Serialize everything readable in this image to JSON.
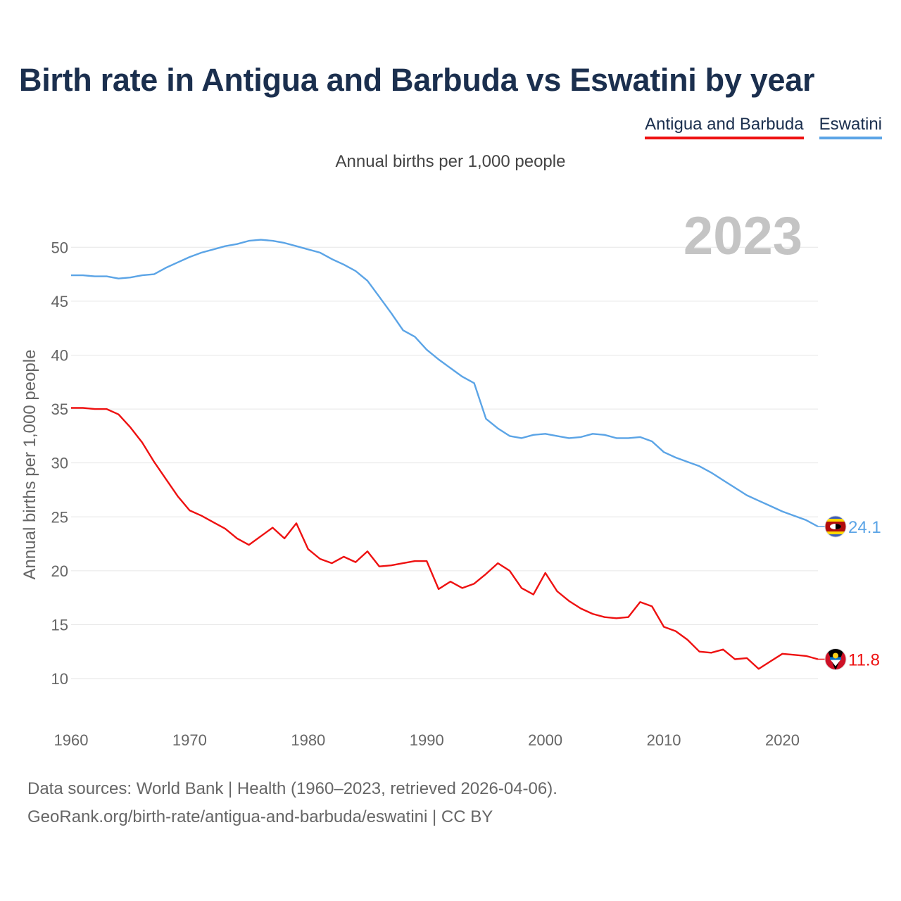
{
  "title": "Birth rate in Antigua and Barbuda vs Eswatini by year",
  "legend": {
    "items": [
      "Antigua and Barbuda",
      "Eswatini"
    ]
  },
  "colors": {
    "antigua": "#ee1111",
    "eswatini": "#5ba4e6",
    "title": "#1b2f4e",
    "grid": "#e6e6e6",
    "year_watermark": "#c4c4c4"
  },
  "source": {
    "line1": "Data sources: World Bank | Health (1960–2023, retrieved 2026-04-06).",
    "line2": "GeoRank.org/birth-rate/antigua-and-barbuda/eswatini | CC BY"
  },
  "chart_data": {
    "type": "line",
    "title": "Birth rate in Antigua and Barbuda vs Eswatini by year",
    "subtitle": "Annual births per 1,000 people",
    "xlabel": "",
    "ylabel": "Annual births per 1,000 people",
    "xlim": [
      1960,
      2023
    ],
    "ylim": [
      7,
      54
    ],
    "y_ticks": [
      10,
      15,
      20,
      25,
      30,
      35,
      40,
      45,
      50
    ],
    "x_ticks": [
      1960,
      1970,
      1980,
      1990,
      2000,
      2010,
      2020
    ],
    "grid": true,
    "year_label": "2023",
    "x": [
      1960,
      1961,
      1962,
      1963,
      1964,
      1965,
      1966,
      1967,
      1968,
      1969,
      1970,
      1971,
      1972,
      1973,
      1974,
      1975,
      1976,
      1977,
      1978,
      1979,
      1980,
      1981,
      1982,
      1983,
      1984,
      1985,
      1986,
      1987,
      1988,
      1989,
      1990,
      1991,
      1992,
      1993,
      1994,
      1995,
      1996,
      1997,
      1998,
      1999,
      2000,
      2001,
      2002,
      2003,
      2004,
      2005,
      2006,
      2007,
      2008,
      2009,
      2010,
      2011,
      2012,
      2013,
      2014,
      2015,
      2016,
      2017,
      2018,
      2019,
      2020,
      2021,
      2022,
      2023
    ],
    "series": [
      {
        "name": "Antigua and Barbuda",
        "color": "#ee1111",
        "end_label": "11.8",
        "values": [
          35.1,
          35.1,
          35.0,
          35.0,
          34.5,
          33.3,
          31.9,
          30.1,
          28.5,
          26.9,
          25.6,
          25.1,
          24.5,
          23.9,
          23.0,
          22.4,
          23.2,
          24.0,
          23.0,
          24.4,
          22.0,
          21.1,
          20.7,
          21.3,
          20.8,
          21.8,
          20.4,
          20.5,
          20.7,
          20.9,
          20.9,
          18.3,
          19.0,
          18.4,
          18.8,
          19.7,
          20.7,
          20.0,
          18.4,
          17.8,
          19.8,
          18.1,
          17.2,
          16.5,
          16.0,
          15.7,
          15.6,
          15.7,
          17.1,
          16.7,
          14.8,
          14.4,
          13.6,
          12.5,
          12.4,
          12.7,
          11.8,
          11.9,
          10.9,
          11.6,
          12.3,
          12.2,
          12.1,
          11.8
        ]
      },
      {
        "name": "Eswatini",
        "color": "#5ba4e6",
        "end_label": "24.1",
        "values": [
          47.4,
          47.4,
          47.3,
          47.3,
          47.1,
          47.2,
          47.4,
          47.5,
          48.1,
          48.6,
          49.1,
          49.5,
          49.8,
          50.1,
          50.3,
          50.6,
          50.7,
          50.6,
          50.4,
          50.1,
          49.8,
          49.5,
          48.9,
          48.4,
          47.8,
          46.9,
          45.4,
          43.9,
          42.3,
          41.7,
          40.5,
          39.6,
          38.8,
          38.0,
          37.4,
          34.1,
          33.2,
          32.5,
          32.3,
          32.6,
          32.7,
          32.5,
          32.3,
          32.4,
          32.7,
          32.6,
          32.3,
          32.3,
          32.4,
          32.0,
          31.0,
          30.5,
          30.1,
          29.7,
          29.1,
          28.4,
          27.7,
          27.0,
          26.5,
          26.0,
          25.5,
          25.1,
          24.7,
          24.1
        ]
      }
    ]
  }
}
